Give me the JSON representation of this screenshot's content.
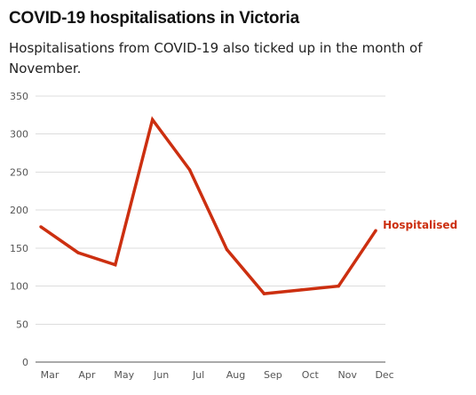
{
  "title": "COVID-19 hospitalisations in Victoria",
  "subtitle": "Hospitalisations from COVID-19 also ticked up in the month of November.",
  "colors": {
    "line": "#cc2f10",
    "grid": "#dddddd",
    "axis": "#555555"
  },
  "chart_data": {
    "type": "line",
    "categories": [
      "Mar",
      "Apr",
      "May",
      "Jun",
      "Jul",
      "Aug",
      "Sep",
      "Oct",
      "Nov",
      "Dec"
    ],
    "series": [
      {
        "name": "Hospitalised",
        "values": [
          178,
          144,
          128,
          319,
          253,
          148,
          90,
          95,
          100,
          173
        ]
      }
    ],
    "ylim": [
      0,
      350
    ],
    "yticks": [
      "0",
      "50",
      "100",
      "150",
      "200",
      "250",
      "300",
      "350"
    ],
    "grid": true,
    "xlabel": "",
    "ylabel": ""
  }
}
